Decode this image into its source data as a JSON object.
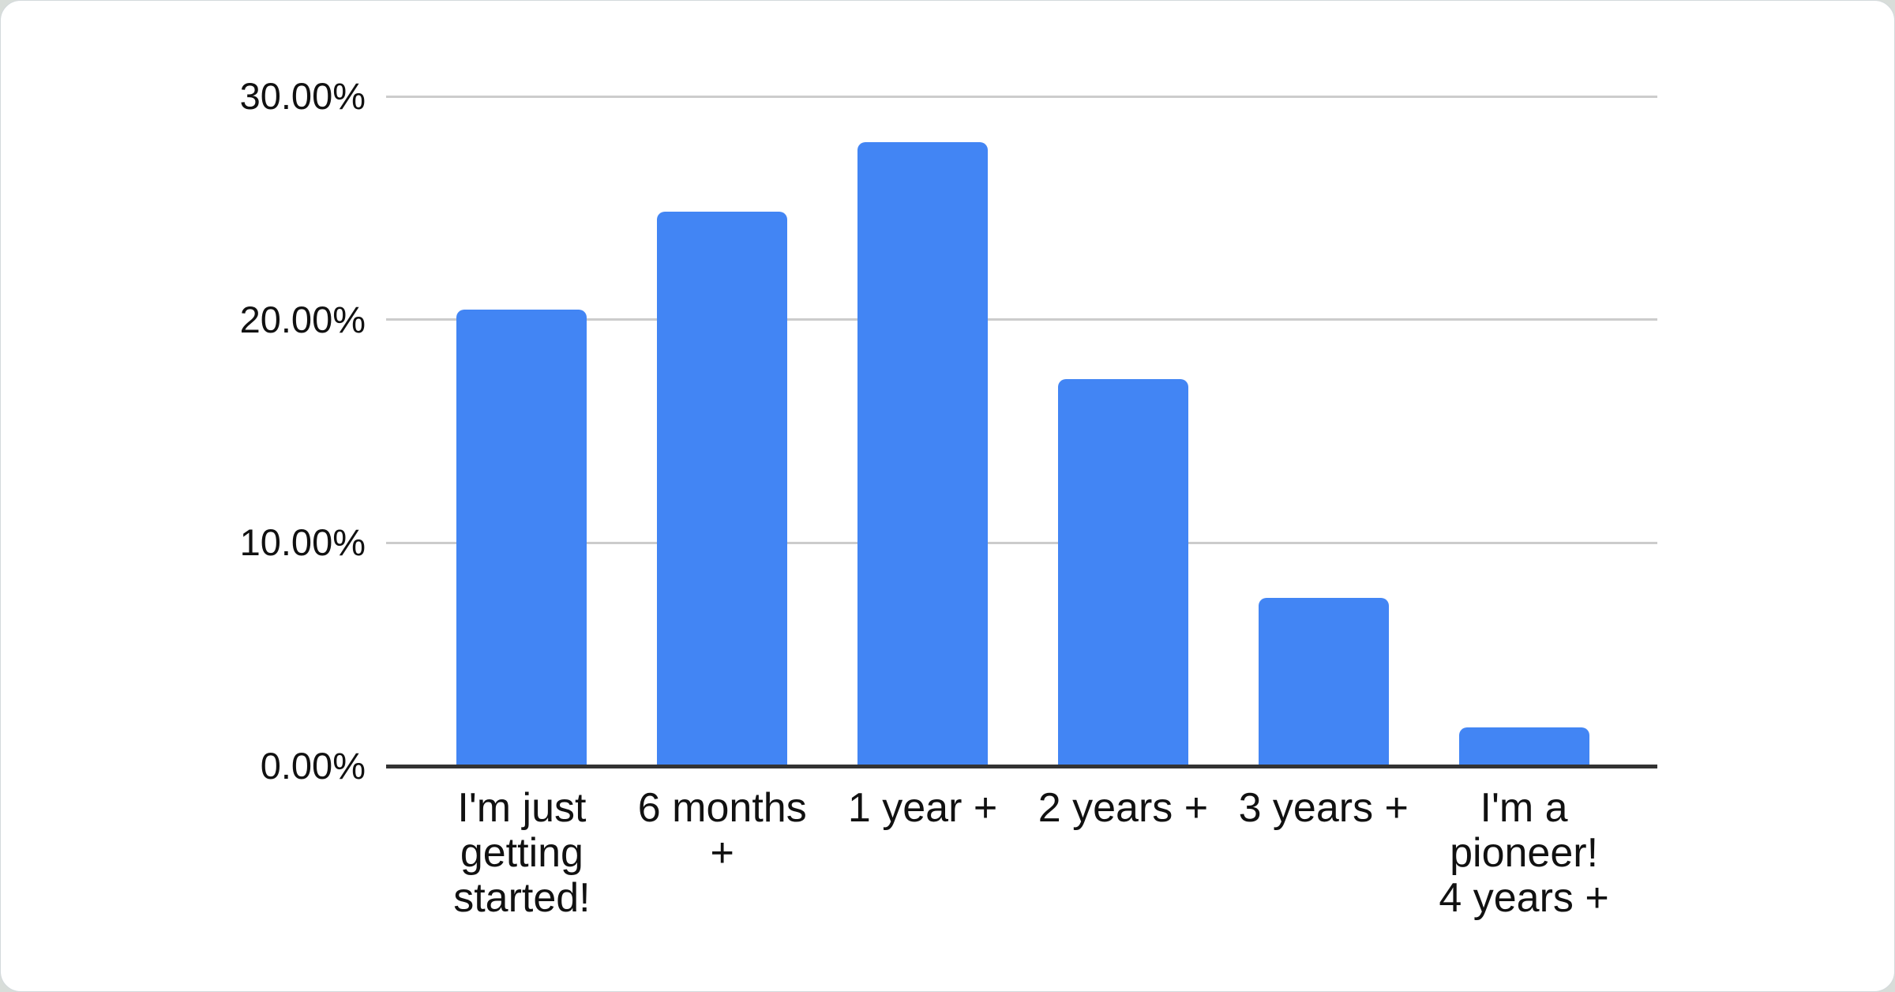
{
  "page": {
    "background_color": "#d8ddd9",
    "card_color": "#ffffff"
  },
  "chart_data": {
    "type": "bar",
    "title": "",
    "xlabel": "",
    "ylabel": "",
    "legend": "none",
    "grid": true,
    "ylim": [
      0,
      30
    ],
    "categories": [
      "I'm just getting started!",
      "6 months +",
      "1 year +",
      "2 years +",
      "3 years +",
      "I'm a pioneer! 4 years +"
    ],
    "categories_wrapped": [
      "I'm just\ngetting\nstarted!",
      "6 months\n+",
      "1 year +",
      "2 years +",
      "3 years +",
      "I'm a\npioneer!\n4 years +"
    ],
    "values": [
      20.45,
      24.85,
      27.95,
      17.35,
      7.55,
      1.75
    ],
    "value_unit": "%",
    "y_ticks": [
      {
        "value": 30,
        "label": "30.00%"
      },
      {
        "value": 20,
        "label": "20.00%"
      },
      {
        "value": 10,
        "label": "10.00%"
      },
      {
        "value": 0,
        "label": "0.00%"
      }
    ],
    "bar_color": "#4285f4",
    "gridline_color": "#cccccc",
    "axis_line_color": "#333333",
    "tick_label_color": "#111111"
  }
}
